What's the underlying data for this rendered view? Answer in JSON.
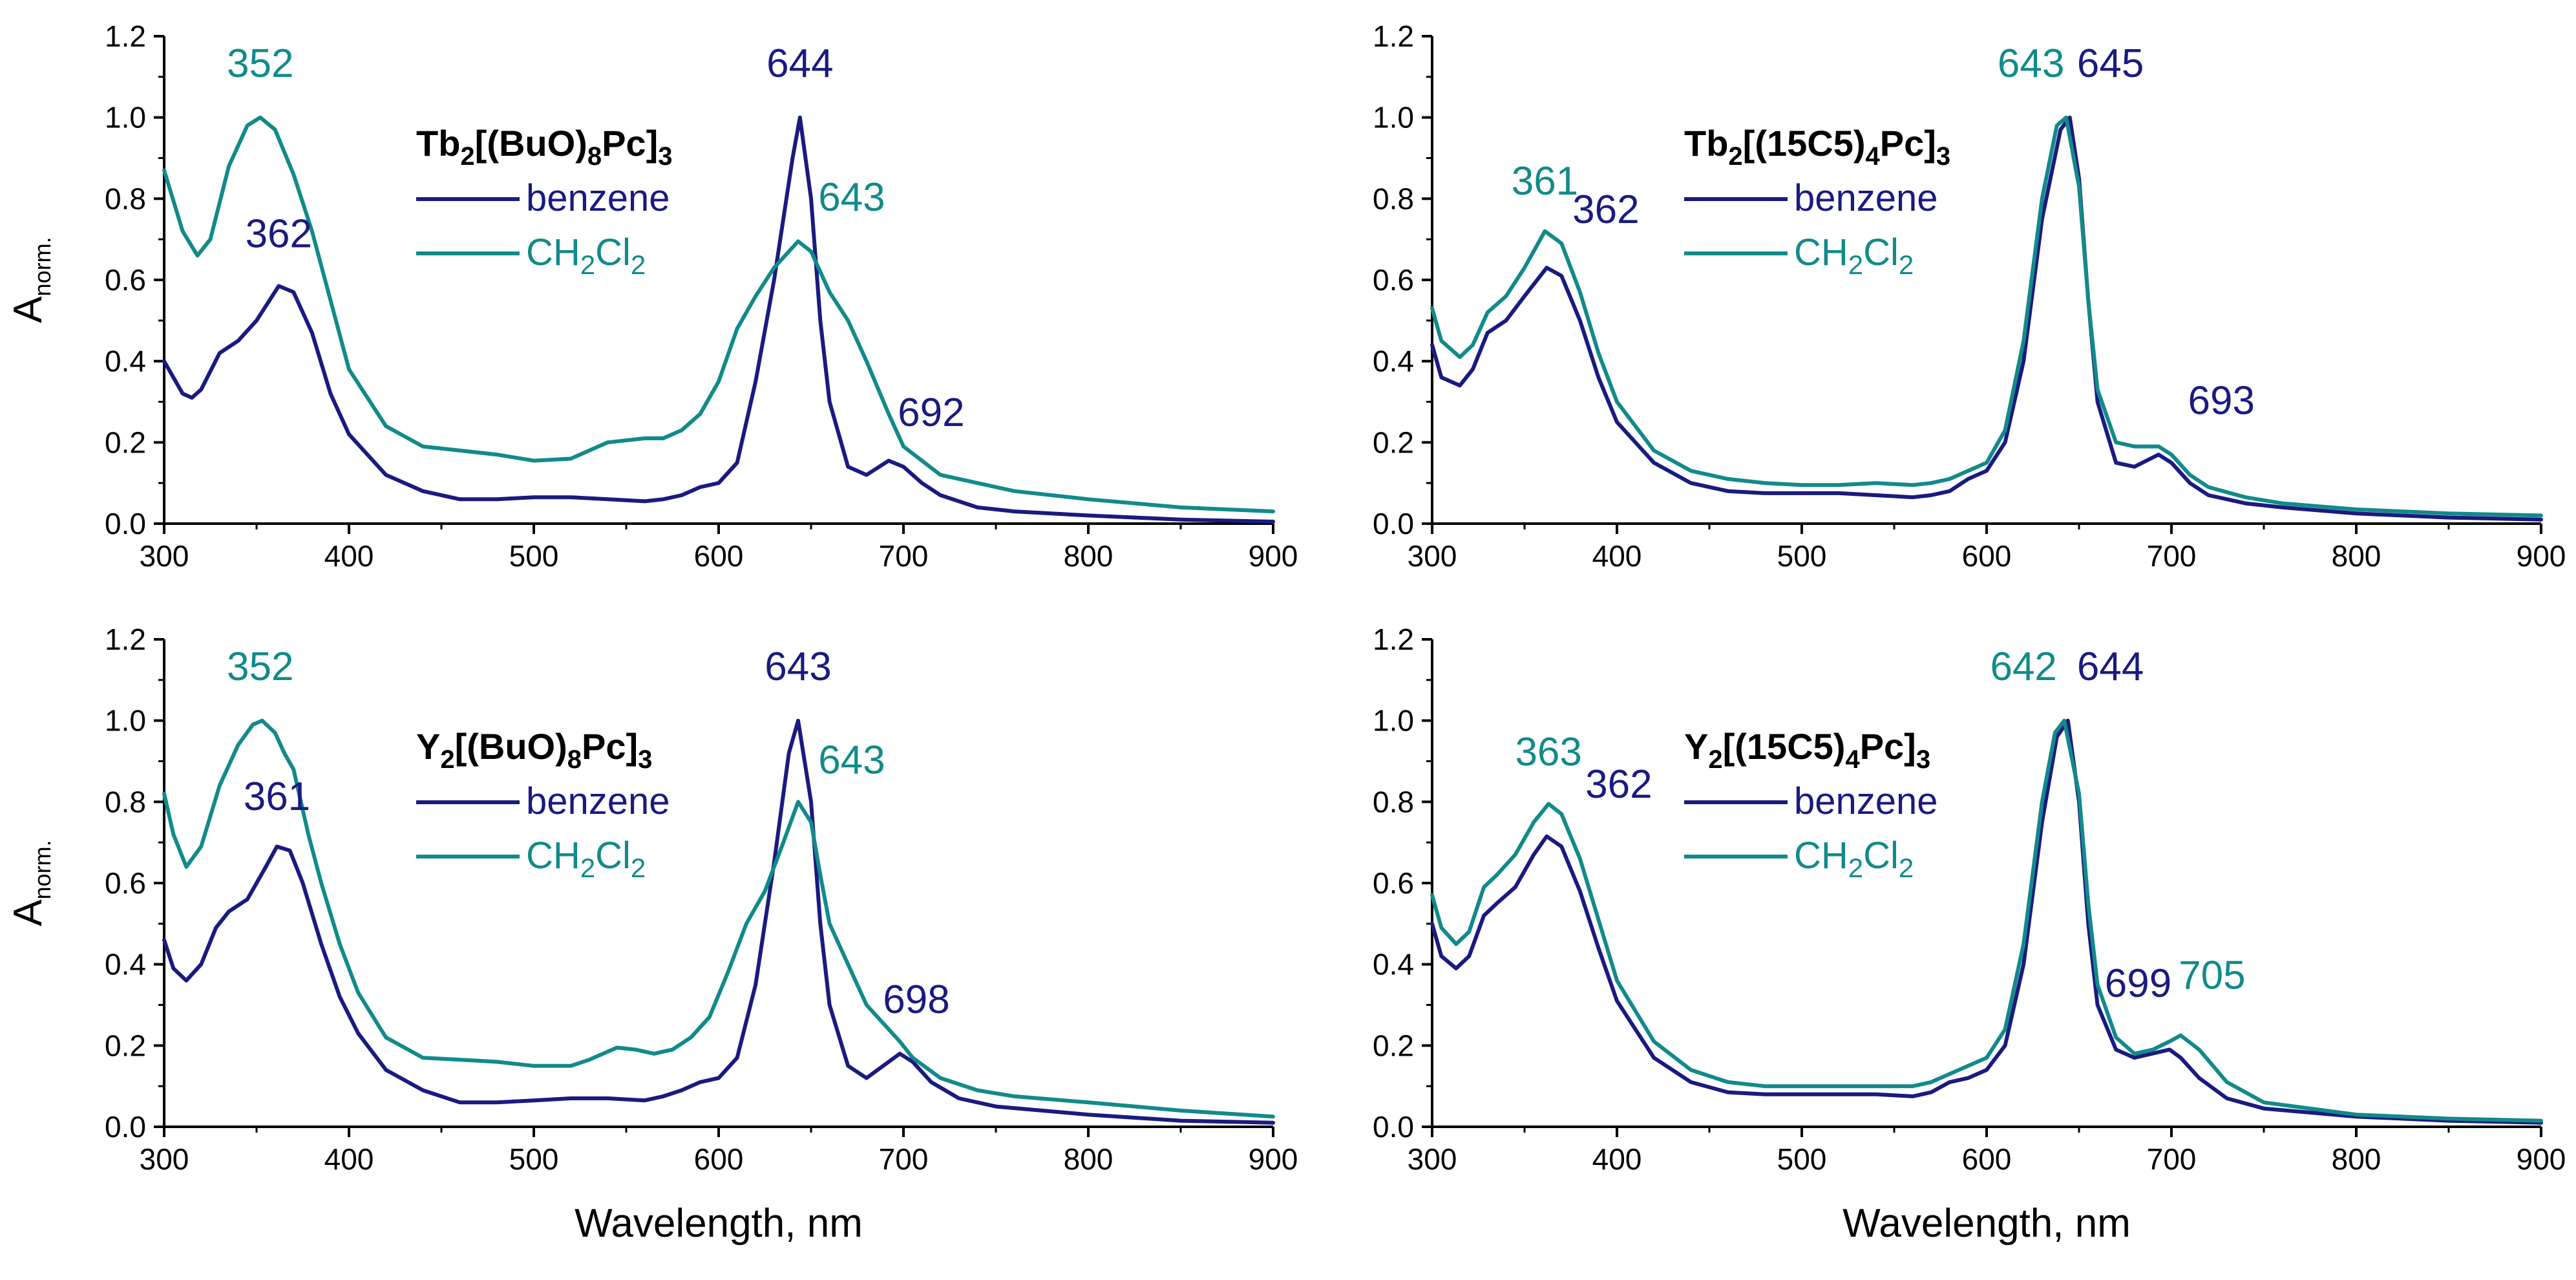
{
  "colors": {
    "benzene": "#1a1a80",
    "ch2cl2": "#128a8a",
    "axis": "#000000"
  },
  "chart_data": [
    {
      "type": "line",
      "panel": "top-left",
      "compound": {
        "parts": [
          "Tb",
          "2",
          "[(BuO)",
          "8",
          "Pc]",
          "3"
        ]
      },
      "xlabel": "",
      "ylabel": {
        "main": "A",
        "sub": "norm."
      },
      "xlim": [
        300,
        900
      ],
      "ylim": [
        0,
        1.2
      ],
      "xticks": [
        "300",
        "400",
        "500",
        "600",
        "700",
        "800",
        "900"
      ],
      "yticks": [
        "0.0",
        "0.2",
        "0.4",
        "0.6",
        "0.8",
        "1.0",
        "1.2"
      ],
      "legend": [
        {
          "series": "benzene",
          "parts": [
            "benzene"
          ]
        },
        {
          "series": "ch2cl2",
          "parts": [
            "CH",
            "2",
            "Cl",
            "2"
          ]
        }
      ],
      "series": [
        {
          "name": "benzene",
          "x": [
            300,
            310,
            315,
            320,
            330,
            340,
            350,
            362,
            370,
            380,
            390,
            400,
            420,
            440,
            460,
            480,
            500,
            520,
            540,
            560,
            570,
            580,
            590,
            600,
            610,
            620,
            630,
            640,
            644,
            650,
            655,
            660,
            670,
            680,
            692,
            700,
            710,
            720,
            740,
            760,
            800,
            850,
            900
          ],
          "y": [
            0.4,
            0.32,
            0.31,
            0.33,
            0.42,
            0.45,
            0.5,
            0.585,
            0.57,
            0.47,
            0.32,
            0.22,
            0.12,
            0.08,
            0.06,
            0.06,
            0.065,
            0.065,
            0.06,
            0.055,
            0.06,
            0.07,
            0.09,
            0.1,
            0.15,
            0.35,
            0.6,
            0.9,
            1.0,
            0.8,
            0.5,
            0.3,
            0.14,
            0.12,
            0.155,
            0.14,
            0.1,
            0.07,
            0.04,
            0.03,
            0.02,
            0.01,
            0.005
          ]
        },
        {
          "name": "ch2cl2",
          "x": [
            300,
            310,
            318,
            325,
            335,
            345,
            352,
            360,
            370,
            380,
            390,
            400,
            420,
            440,
            460,
            480,
            500,
            520,
            530,
            540,
            550,
            560,
            570,
            580,
            590,
            600,
            610,
            620,
            630,
            643,
            650,
            660,
            670,
            680,
            692,
            700,
            720,
            740,
            760,
            800,
            850,
            900
          ],
          "y": [
            0.87,
            0.72,
            0.66,
            0.7,
            0.88,
            0.98,
            1.0,
            0.97,
            0.86,
            0.72,
            0.55,
            0.38,
            0.24,
            0.19,
            0.18,
            0.17,
            0.155,
            0.16,
            0.18,
            0.2,
            0.205,
            0.21,
            0.21,
            0.23,
            0.27,
            0.35,
            0.48,
            0.56,
            0.63,
            0.695,
            0.67,
            0.57,
            0.5,
            0.4,
            0.27,
            0.19,
            0.12,
            0.1,
            0.08,
            0.06,
            0.04,
            0.03
          ]
        }
      ],
      "annotations": [
        {
          "text": "352",
          "series": "ch2cl2",
          "x": 352,
          "y": 1.1
        },
        {
          "text": "362",
          "series": "benzene",
          "x": 362,
          "y": 0.68
        },
        {
          "text": "644",
          "series": "benzene",
          "x": 644,
          "y": 1.1
        },
        {
          "text": "643",
          "series": "ch2cl2",
          "x": 672,
          "y": 0.77
        },
        {
          "text": "692",
          "series": "benzene",
          "x": 715,
          "y": 0.24
        }
      ]
    },
    {
      "type": "line",
      "panel": "top-right",
      "compound": {
        "parts": [
          "Tb",
          "2",
          "[(15C5)",
          "4",
          "Pc]",
          "3"
        ]
      },
      "xlabel": "",
      "ylabel": null,
      "xlim": [
        300,
        900
      ],
      "ylim": [
        0,
        1.2
      ],
      "xticks": [
        "300",
        "400",
        "500",
        "600",
        "700",
        "800",
        "900"
      ],
      "yticks": [
        "0.0",
        "0.2",
        "0.4",
        "0.6",
        "0.8",
        "1.0",
        "1.2"
      ],
      "legend": [
        {
          "series": "benzene",
          "parts": [
            "benzene"
          ]
        },
        {
          "series": "ch2cl2",
          "parts": [
            "CH",
            "2",
            "Cl",
            "2"
          ]
        }
      ],
      "series": [
        {
          "name": "benzene",
          "x": [
            300,
            305,
            315,
            322,
            330,
            340,
            350,
            362,
            370,
            380,
            390,
            400,
            420,
            440,
            460,
            480,
            500,
            520,
            540,
            560,
            570,
            580,
            590,
            600,
            610,
            620,
            630,
            640,
            645,
            650,
            655,
            660,
            670,
            680,
            693,
            700,
            710,
            720,
            740,
            760,
            800,
            850,
            900
          ],
          "y": [
            0.44,
            0.36,
            0.34,
            0.38,
            0.47,
            0.5,
            0.56,
            0.63,
            0.61,
            0.5,
            0.36,
            0.25,
            0.15,
            0.1,
            0.08,
            0.075,
            0.075,
            0.075,
            0.07,
            0.065,
            0.07,
            0.08,
            0.11,
            0.13,
            0.2,
            0.4,
            0.75,
            0.97,
            1.0,
            0.85,
            0.55,
            0.3,
            0.15,
            0.14,
            0.17,
            0.15,
            0.1,
            0.07,
            0.05,
            0.04,
            0.025,
            0.015,
            0.01
          ]
        },
        {
          "name": "ch2cl2",
          "x": [
            300,
            305,
            315,
            322,
            330,
            340,
            350,
            361,
            370,
            380,
            390,
            400,
            420,
            440,
            460,
            480,
            500,
            520,
            540,
            560,
            570,
            580,
            590,
            600,
            610,
            620,
            630,
            638,
            643,
            650,
            655,
            660,
            670,
            680,
            693,
            700,
            710,
            720,
            740,
            760,
            800,
            850,
            900
          ],
          "y": [
            0.53,
            0.45,
            0.41,
            0.44,
            0.52,
            0.56,
            0.63,
            0.72,
            0.69,
            0.57,
            0.42,
            0.3,
            0.18,
            0.13,
            0.11,
            0.1,
            0.095,
            0.095,
            0.1,
            0.095,
            0.1,
            0.11,
            0.13,
            0.15,
            0.23,
            0.45,
            0.8,
            0.98,
            1.0,
            0.83,
            0.55,
            0.33,
            0.2,
            0.19,
            0.19,
            0.17,
            0.12,
            0.09,
            0.065,
            0.05,
            0.035,
            0.025,
            0.02
          ]
        }
      ],
      "annotations": [
        {
          "text": "361",
          "series": "ch2cl2",
          "x": 361,
          "y": 0.81
        },
        {
          "text": "362",
          "series": "benzene",
          "x": 394,
          "y": 0.74
        },
        {
          "text": "643",
          "series": "ch2cl2",
          "x": 624,
          "y": 1.1
        },
        {
          "text": "645",
          "series": "benzene",
          "x": 667,
          "y": 1.1
        },
        {
          "text": "693",
          "series": "benzene",
          "x": 727,
          "y": 0.27
        }
      ]
    },
    {
      "type": "line",
      "panel": "bottom-left",
      "compound": {
        "parts": [
          "Y",
          "2",
          "[(BuO)",
          "8",
          "Pc]",
          "3"
        ]
      },
      "xlabel": "Wavelength, nm",
      "ylabel": {
        "main": "A",
        "sub": "norm."
      },
      "xlim": [
        300,
        900
      ],
      "ylim": [
        0,
        1.2
      ],
      "xticks": [
        "300",
        "400",
        "500",
        "600",
        "700",
        "800",
        "900"
      ],
      "yticks": [
        "0.0",
        "0.2",
        "0.4",
        "0.6",
        "0.8",
        "1.0",
        "1.2"
      ],
      "legend": [
        {
          "series": "benzene",
          "parts": [
            "benzene"
          ]
        },
        {
          "series": "ch2cl2",
          "parts": [
            "CH",
            "2",
            "Cl",
            "2"
          ]
        }
      ],
      "series": [
        {
          "name": "benzene",
          "x": [
            300,
            305,
            312,
            320,
            328,
            335,
            345,
            355,
            361,
            368,
            375,
            385,
            395,
            405,
            420,
            440,
            460,
            480,
            500,
            520,
            540,
            560,
            570,
            580,
            590,
            600,
            610,
            620,
            630,
            638,
            643,
            650,
            655,
            660,
            670,
            680,
            698,
            705,
            715,
            730,
            750,
            800,
            850,
            900
          ],
          "y": [
            0.46,
            0.39,
            0.36,
            0.4,
            0.49,
            0.53,
            0.56,
            0.64,
            0.69,
            0.68,
            0.6,
            0.45,
            0.32,
            0.23,
            0.14,
            0.09,
            0.06,
            0.06,
            0.065,
            0.07,
            0.07,
            0.065,
            0.075,
            0.09,
            0.11,
            0.12,
            0.17,
            0.35,
            0.65,
            0.92,
            1.0,
            0.8,
            0.5,
            0.3,
            0.15,
            0.12,
            0.18,
            0.16,
            0.11,
            0.07,
            0.05,
            0.03,
            0.015,
            0.01
          ]
        },
        {
          "name": "ch2cl2",
          "x": [
            300,
            305,
            312,
            320,
            330,
            340,
            348,
            353,
            360,
            365,
            370,
            378,
            385,
            395,
            405,
            420,
            440,
            460,
            480,
            500,
            520,
            530,
            545,
            555,
            565,
            575,
            585,
            595,
            605,
            615,
            625,
            635,
            643,
            650,
            655,
            660,
            670,
            680,
            698,
            705,
            720,
            740,
            760,
            800,
            850,
            900
          ],
          "y": [
            0.82,
            0.72,
            0.64,
            0.69,
            0.84,
            0.94,
            0.99,
            1.0,
            0.97,
            0.92,
            0.88,
            0.72,
            0.6,
            0.45,
            0.33,
            0.22,
            0.17,
            0.165,
            0.16,
            0.15,
            0.15,
            0.165,
            0.195,
            0.19,
            0.18,
            0.19,
            0.22,
            0.27,
            0.38,
            0.5,
            0.58,
            0.7,
            0.8,
            0.75,
            0.62,
            0.5,
            0.4,
            0.3,
            0.21,
            0.17,
            0.12,
            0.09,
            0.075,
            0.06,
            0.04,
            0.025
          ]
        }
      ],
      "annotations": [
        {
          "text": "352",
          "series": "ch2cl2",
          "x": 352,
          "y": 1.1
        },
        {
          "text": "361",
          "series": "benzene",
          "x": 361,
          "y": 0.78
        },
        {
          "text": "643",
          "series": "benzene",
          "x": 643,
          "y": 1.1
        },
        {
          "text": "643",
          "series": "ch2cl2",
          "x": 672,
          "y": 0.87
        },
        {
          "text": "698",
          "series": "benzene",
          "x": 707,
          "y": 0.28
        }
      ]
    },
    {
      "type": "line",
      "panel": "bottom-right",
      "compound": {
        "parts": [
          "Y",
          "2",
          "[(15C5)",
          "4",
          "Pc]",
          "3"
        ]
      },
      "xlabel": "Wavelength, nm",
      "ylabel": null,
      "xlim": [
        300,
        900
      ],
      "ylim": [
        0,
        1.2
      ],
      "xticks": [
        "300",
        "400",
        "500",
        "600",
        "700",
        "800",
        "900"
      ],
      "yticks": [
        "0.0",
        "0.2",
        "0.4",
        "0.6",
        "0.8",
        "1.0",
        "1.2"
      ],
      "legend": [
        {
          "series": "benzene",
          "parts": [
            "benzene"
          ]
        },
        {
          "series": "ch2cl2",
          "parts": [
            "CH",
            "2",
            "Cl",
            "2"
          ]
        }
      ],
      "series": [
        {
          "name": "benzene",
          "x": [
            300,
            305,
            313,
            320,
            328,
            335,
            345,
            355,
            362,
            370,
            380,
            390,
            400,
            420,
            440,
            460,
            480,
            500,
            520,
            540,
            560,
            570,
            580,
            590,
            600,
            610,
            620,
            630,
            638,
            644,
            650,
            655,
            660,
            670,
            680,
            699,
            705,
            715,
            730,
            750,
            800,
            850,
            900
          ],
          "y": [
            0.5,
            0.42,
            0.39,
            0.42,
            0.52,
            0.55,
            0.59,
            0.67,
            0.715,
            0.69,
            0.58,
            0.44,
            0.31,
            0.17,
            0.11,
            0.085,
            0.08,
            0.08,
            0.08,
            0.08,
            0.075,
            0.085,
            0.11,
            0.12,
            0.14,
            0.2,
            0.4,
            0.75,
            0.96,
            1.0,
            0.8,
            0.5,
            0.3,
            0.19,
            0.17,
            0.19,
            0.17,
            0.12,
            0.07,
            0.045,
            0.025,
            0.015,
            0.01
          ]
        },
        {
          "name": "ch2cl2",
          "x": [
            300,
            305,
            313,
            320,
            328,
            335,
            345,
            355,
            363,
            370,
            380,
            390,
            400,
            420,
            440,
            460,
            480,
            500,
            520,
            540,
            560,
            570,
            580,
            590,
            600,
            610,
            620,
            630,
            637,
            642,
            650,
            655,
            660,
            670,
            680,
            690,
            699,
            705,
            715,
            730,
            750,
            800,
            850,
            900
          ],
          "y": [
            0.57,
            0.49,
            0.45,
            0.48,
            0.59,
            0.62,
            0.67,
            0.75,
            0.795,
            0.77,
            0.66,
            0.51,
            0.36,
            0.21,
            0.14,
            0.11,
            0.1,
            0.1,
            0.1,
            0.1,
            0.1,
            0.11,
            0.13,
            0.15,
            0.17,
            0.24,
            0.45,
            0.8,
            0.97,
            1.0,
            0.82,
            0.55,
            0.35,
            0.22,
            0.18,
            0.19,
            0.21,
            0.225,
            0.19,
            0.11,
            0.06,
            0.03,
            0.02,
            0.015
          ]
        }
      ],
      "annotations": [
        {
          "text": "363",
          "series": "ch2cl2",
          "x": 363,
          "y": 0.89
        },
        {
          "text": "362",
          "series": "benzene",
          "x": 401,
          "y": 0.81
        },
        {
          "text": "642",
          "series": "ch2cl2",
          "x": 620,
          "y": 1.1
        },
        {
          "text": "644",
          "series": "benzene",
          "x": 667,
          "y": 1.1
        },
        {
          "text": "699",
          "series": "benzene",
          "x": 682,
          "y": 0.32
        },
        {
          "text": "705",
          "series": "ch2cl2",
          "x": 722,
          "y": 0.34
        }
      ]
    }
  ]
}
